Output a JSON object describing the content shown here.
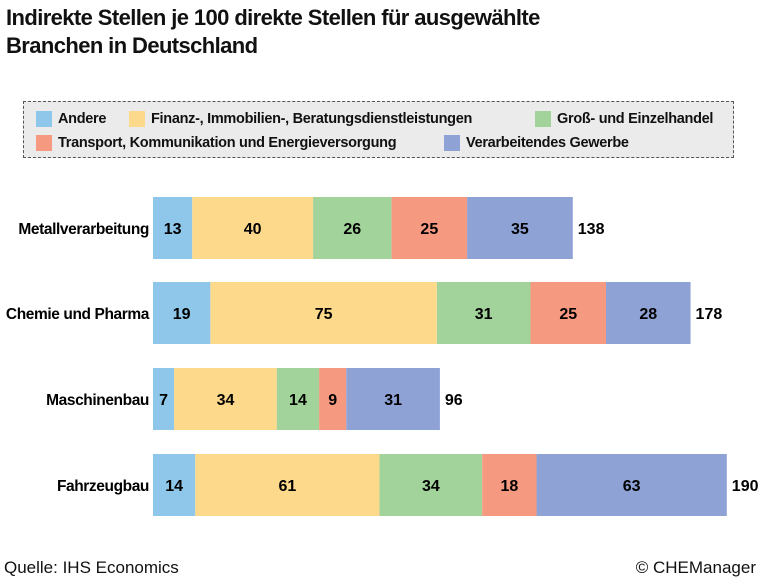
{
  "title_line1": "Indirekte Stellen je 100 direkte Stellen für ausgewählte",
  "title_line2": "Branchen in Deutschland",
  "source": "Quelle: IHS Economics",
  "copyright": "© CHEManager",
  "chart_data": {
    "type": "bar",
    "orientation": "horizontal",
    "stacked": true,
    "categories": [
      "Metallverarbeitung",
      "Chemie und Pharma",
      "Maschinenbau",
      "Fahrzeugbau"
    ],
    "series": [
      {
        "name": "Andere",
        "color": "#8ec7ea",
        "values": [
          13,
          19,
          7,
          14
        ]
      },
      {
        "name": "Finanz-, Immobilien-, Beratungsdienstleistungen",
        "color": "#fdd98c",
        "values": [
          40,
          75,
          34,
          61
        ]
      },
      {
        "name": "Groß- und Einzelhandel",
        "color": "#a2d39a",
        "values": [
          26,
          31,
          14,
          34
        ]
      },
      {
        "name": "Transport, Kommunikation und Energieversorgung",
        "color": "#f59a80",
        "values": [
          25,
          25,
          9,
          18
        ]
      },
      {
        "name": "Verarbeitendes Gewerbe",
        "color": "#8ea2d6",
        "values": [
          35,
          28,
          31,
          63
        ]
      }
    ],
    "totals": [
      138,
      178,
      96,
      190
    ],
    "legend_position": "top",
    "grid": false
  }
}
